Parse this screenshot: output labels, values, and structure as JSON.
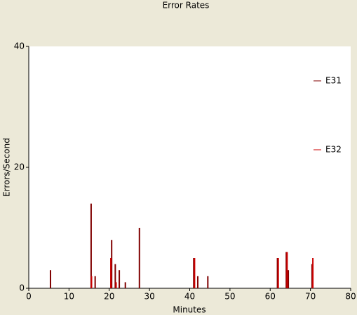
{
  "chart_data": {
    "type": "spike",
    "title": "Error Rates",
    "x_label": "Minutes",
    "y_label": "Errors/Second",
    "xlim": [
      0,
      80
    ],
    "xticks": [
      0,
      10,
      20,
      30,
      40,
      50,
      60,
      70,
      80
    ],
    "ylim": [
      0,
      40
    ],
    "yticks": [
      0,
      20,
      40
    ],
    "series": [
      {
        "name": "E31",
        "color": "#800000",
        "x": [
          5.4,
          15.5,
          16.5,
          20.6,
          21.5,
          22.5,
          24,
          27.5,
          41,
          42,
          44.5,
          61.8,
          64,
          64.5,
          70.4
        ],
        "values": [
          3,
          14,
          2,
          8,
          4,
          3,
          1,
          10,
          5,
          2,
          2,
          5,
          6,
          3,
          4
        ]
      },
      {
        "name": "E32",
        "color": "#cc0000",
        "x": [
          15.6,
          20.4,
          21.7,
          41.2,
          62,
          64.2,
          70.6
        ],
        "values": [
          2,
          5,
          1,
          5,
          5,
          6,
          5
        ]
      }
    ]
  }
}
